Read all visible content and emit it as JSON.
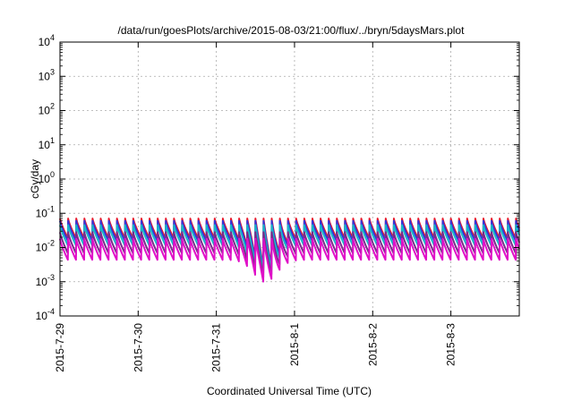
{
  "chart_data": {
    "type": "line",
    "title": "/data/run/goesPlots/archive/2015-08-03/21:00/flux/../bryn/5daysMars.plot",
    "xlabel": "Coordinated Universal Time (UTC)",
    "ylabel": "cGy/day",
    "y_scale": "log",
    "ylim": [
      0.0001,
      10000
    ],
    "y_ticks": [
      {
        "exp": "-4",
        "value": 0.0001
      },
      {
        "exp": "-3",
        "value": 0.001
      },
      {
        "exp": "-2",
        "value": 0.01
      },
      {
        "exp": "-1",
        "value": 0.1
      },
      {
        "exp": "0",
        "value": 1
      },
      {
        "exp": "1",
        "value": 10
      },
      {
        "exp": "2",
        "value": 100
      },
      {
        "exp": "3",
        "value": 1000
      },
      {
        "exp": "4",
        "value": 10000
      }
    ],
    "xlim": [
      "2015-07-29 00:00",
      "2015-08-03 21:00"
    ],
    "x_ticks": [
      "2015-7-29",
      "2015-7-30",
      "2015-7-31",
      "2015-8-1",
      "2015-8-2",
      "2015-8-3"
    ],
    "grid": true,
    "legend": "none",
    "sawtooth_period_hours": 2.5,
    "series": [
      {
        "color": "#e8182a",
        "peak": 0.07,
        "trough": 0.018,
        "dip_min": 0.0022
      },
      {
        "color": "#3535d8",
        "peak": 0.06,
        "trough": 0.015,
        "dip_min": 0.0019
      },
      {
        "color": "#18b8c8",
        "peak": 0.045,
        "trough": 0.011,
        "dip_min": 0.0016
      },
      {
        "color": "#7a2a8a",
        "peak": 0.028,
        "trough": 0.0065,
        "dip_min": 0.0012
      },
      {
        "color": "#e010c8",
        "peak": 0.018,
        "trough": 0.0042,
        "dip_min": 0.0009
      }
    ],
    "events": [
      {
        "label": "dip",
        "time": "2015-07-31 15:00",
        "depth_factor": 0.12
      }
    ]
  }
}
